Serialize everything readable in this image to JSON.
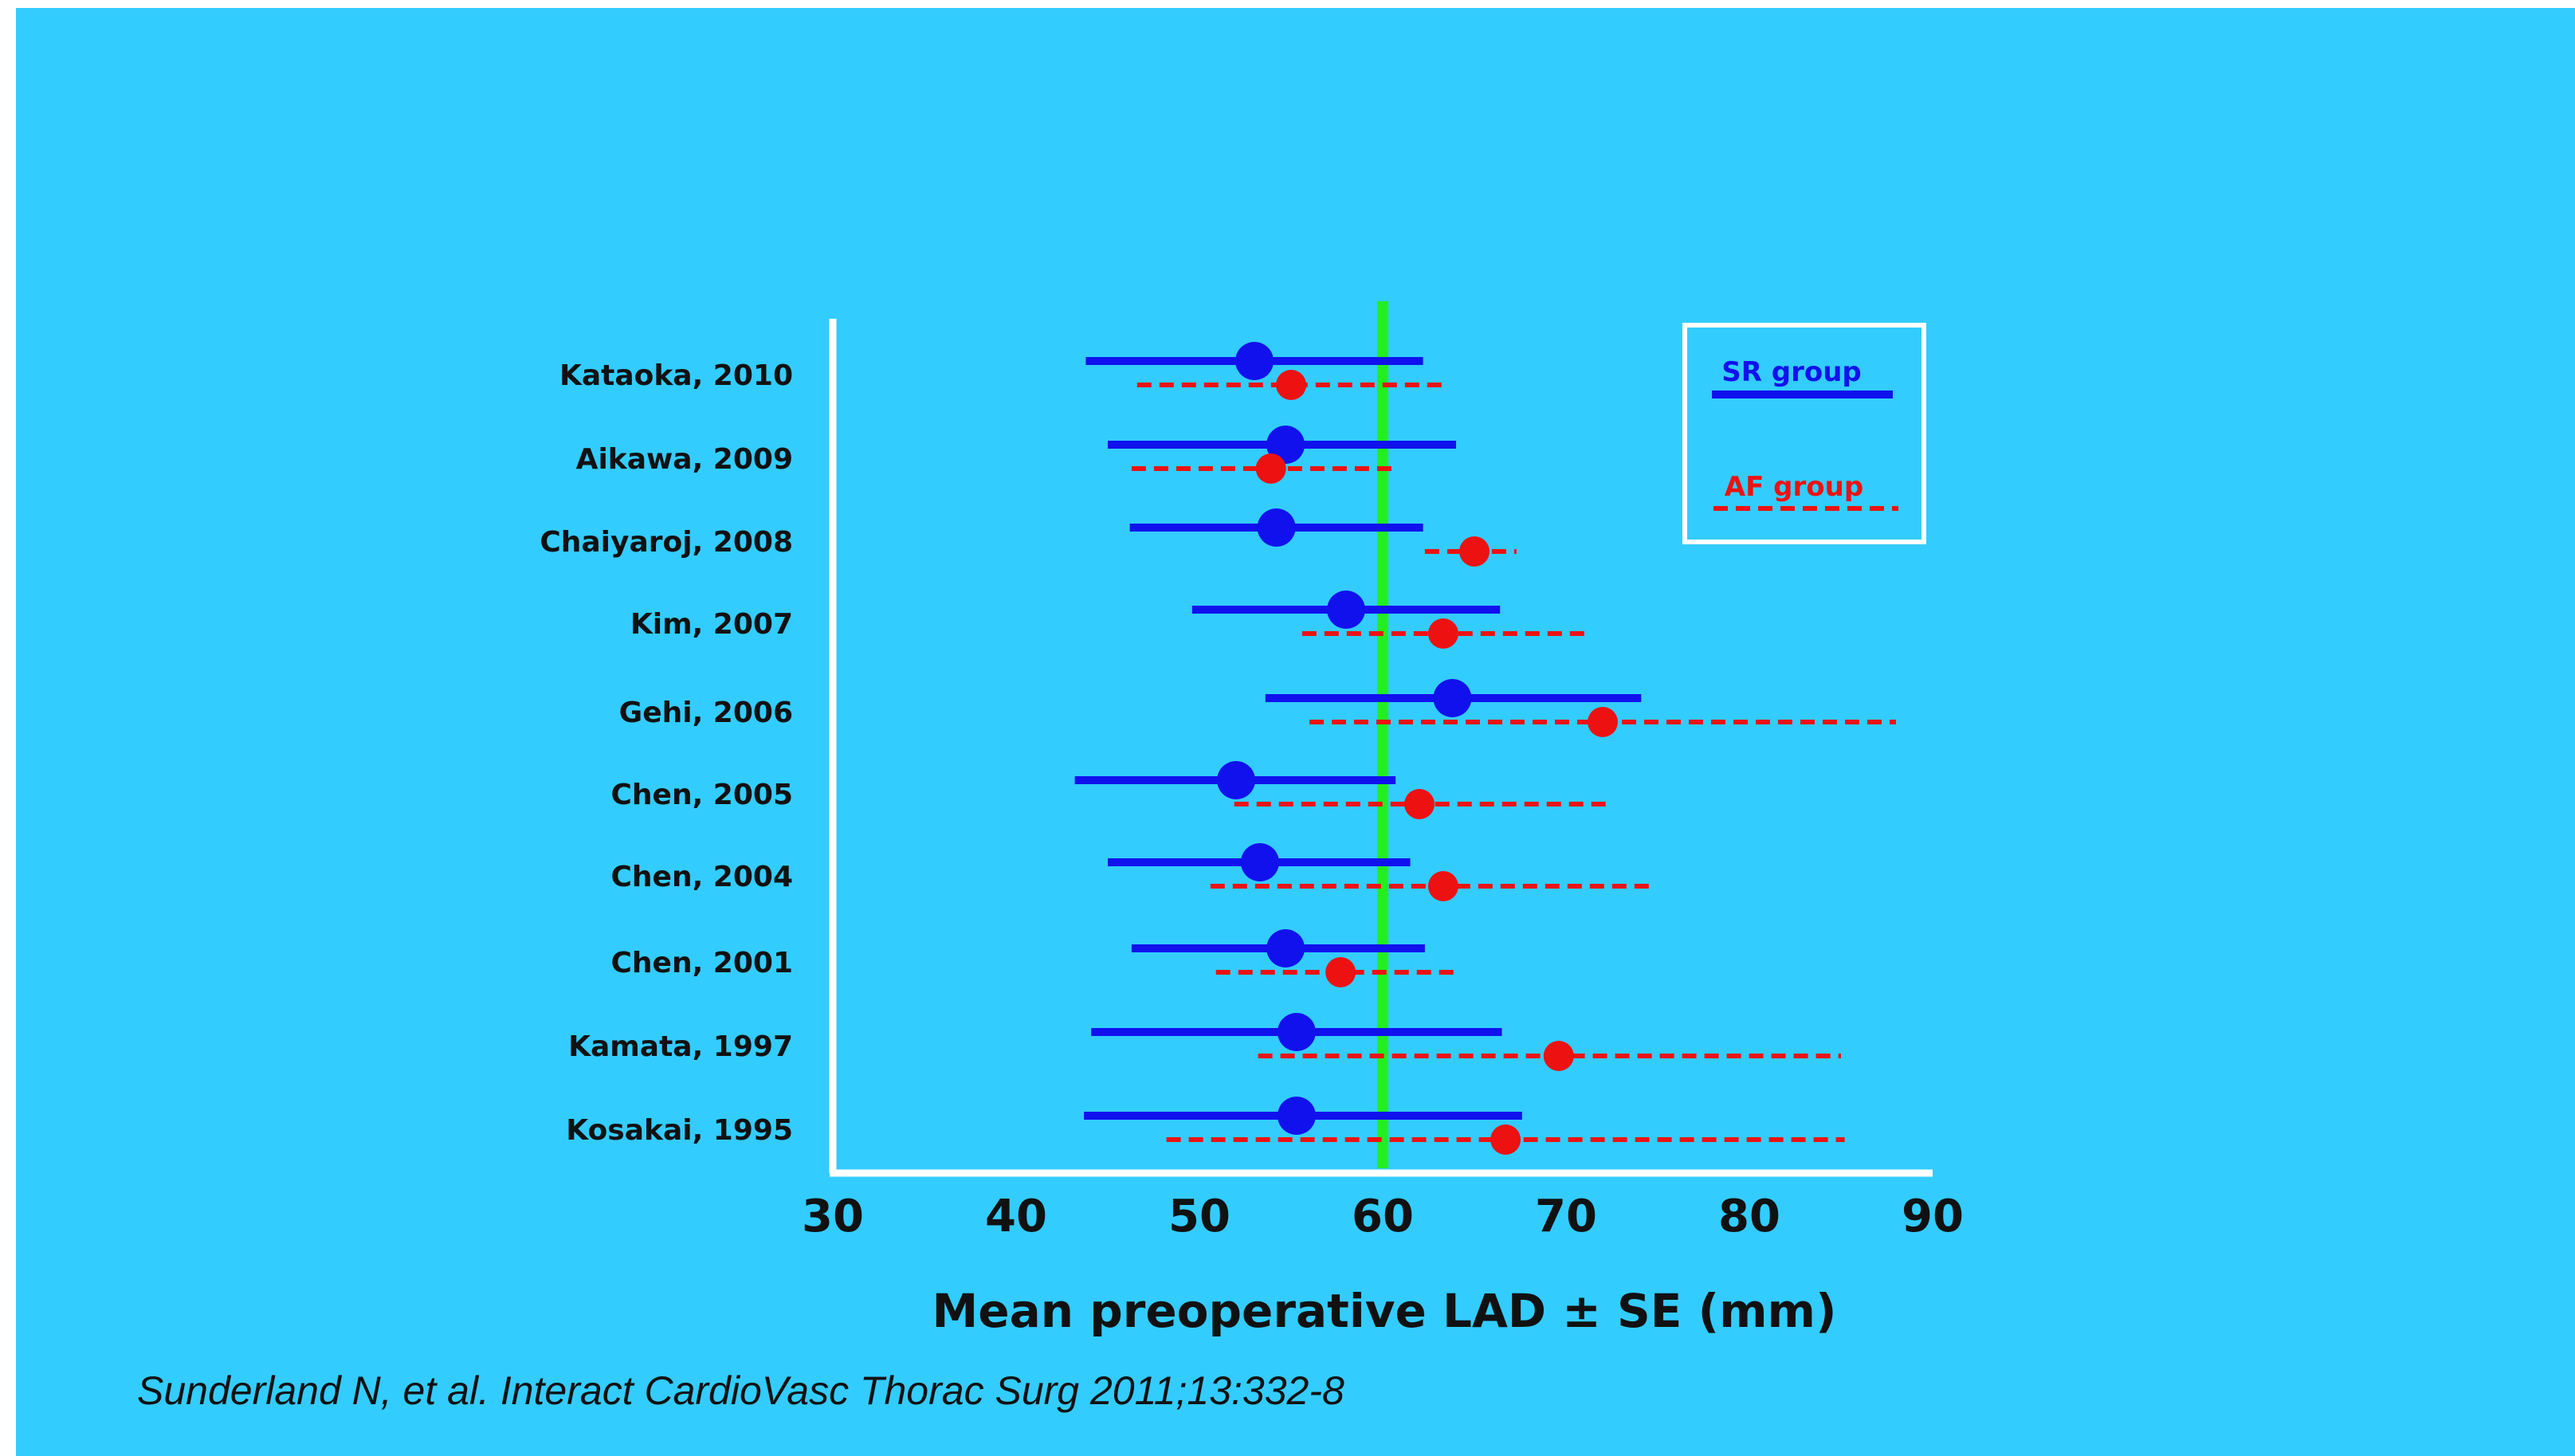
{
  "chart_data": {
    "type": "scatter",
    "subtype": "forest-plot",
    "title": "",
    "xlabel": "Mean preoperative LAD ± SE (mm)",
    "ylabel": "",
    "xlim": [
      30,
      90
    ],
    "xticks": [
      30,
      40,
      50,
      60,
      70,
      80,
      90
    ],
    "reference_line": {
      "x": 60,
      "color": "#22ee22"
    },
    "grid": false,
    "legend_position": "top-right",
    "studies": [
      "Kataoka, 2010",
      "Aikawa, 2009",
      "Chaiyaroj, 2008",
      "Kim, 2007",
      "Gehi, 2006",
      "Chen, 2005",
      "Chen, 2004",
      "Chen, 2001",
      "Kamata, 1997",
      "Kosakai, 1995"
    ],
    "series": [
      {
        "name": "SR group",
        "color": "#1111ee",
        "line_style": "solid",
        "mean": [
          53,
          54.7,
          54.2,
          58,
          63.8,
          52,
          53.3,
          54.7,
          55.3,
          55.3
        ],
        "lower": [
          43.8,
          45,
          46.2,
          49.6,
          53.6,
          43.2,
          45,
          46.3,
          44.1,
          43.7
        ],
        "upper": [
          62.2,
          64,
          62.2,
          66.4,
          74.1,
          60.7,
          61.5,
          62.3,
          66.5,
          67.6
        ]
      },
      {
        "name": "AF group",
        "color": "#ee1111",
        "line_style": "dashed",
        "mean": [
          55,
          53.9,
          65,
          63.3,
          72,
          62,
          63.3,
          57.7,
          69.6,
          66.7
        ],
        "lower": [
          46.6,
          46.3,
          62.3,
          55.6,
          56,
          51.9,
          50.6,
          50.9,
          53.2,
          48.2
        ],
        "upper": [
          63.3,
          60.5,
          67.3,
          71,
          88,
          72.2,
          74.8,
          64.2,
          85,
          85.2
        ]
      }
    ]
  },
  "citation": "Sunderland N, et al. Interact CardioVasc Thorac Surg 2011;13:332-8"
}
